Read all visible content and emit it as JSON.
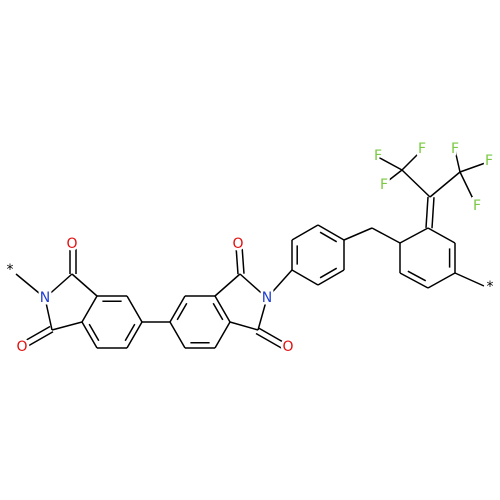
{
  "labels": [
    {
      "text": "*",
      "element": "star"
    },
    {
      "text": "N",
      "element": "N"
    },
    {
      "text": "O",
      "element": "O"
    },
    {
      "text": "O",
      "element": "O"
    },
    {
      "text": "O",
      "element": "O"
    },
    {
      "text": "N",
      "element": "N"
    },
    {
      "text": "O",
      "element": "O"
    },
    {
      "text": "F",
      "element": "F"
    },
    {
      "text": "F",
      "element": "F"
    },
    {
      "text": "F",
      "element": "F"
    },
    {
      "text": "F",
      "element": "F"
    },
    {
      "text": "F",
      "element": "F"
    },
    {
      "text": "F",
      "element": "F"
    },
    {
      "text": "*",
      "element": "star"
    }
  ]
}
